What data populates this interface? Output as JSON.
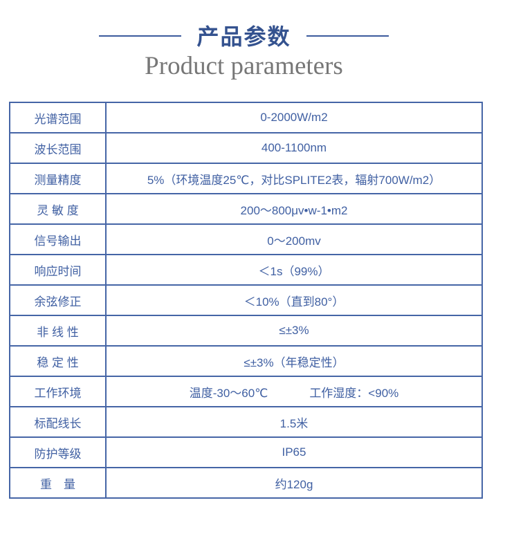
{
  "header": {
    "title": "产品参数",
    "subtitle": "Product parameters"
  },
  "params": [
    {
      "label": "光谱范围",
      "value": "0-2000W/m2"
    },
    {
      "label": "波长范围",
      "value": "400-1100nm"
    },
    {
      "label": "测量精度",
      "value": "5%（环境温度25℃，对比SPLITE2表，辐射700W/m2）"
    },
    {
      "label": "灵 敏 度",
      "value": "200～800μv•w-1•m2"
    },
    {
      "label": "信号输出",
      "value": "0～200mv"
    },
    {
      "label": "响应时间",
      "value": "＜1s（99%）"
    },
    {
      "label": "余弦修正",
      "value": "＜10%（直到80°）"
    },
    {
      "label": "非 线 性",
      "value": "≤±3%"
    },
    {
      "label": "稳 定 性",
      "value": "≤±3%（年稳定性）"
    },
    {
      "label": "工作环境",
      "value": "温度-30～60℃",
      "value2": "工作湿度：<90%"
    },
    {
      "label": "标配线长",
      "value": "1.5米"
    },
    {
      "label": "防护等级",
      "value": "IP65"
    },
    {
      "label": "重　量",
      "value": "约120g"
    }
  ]
}
